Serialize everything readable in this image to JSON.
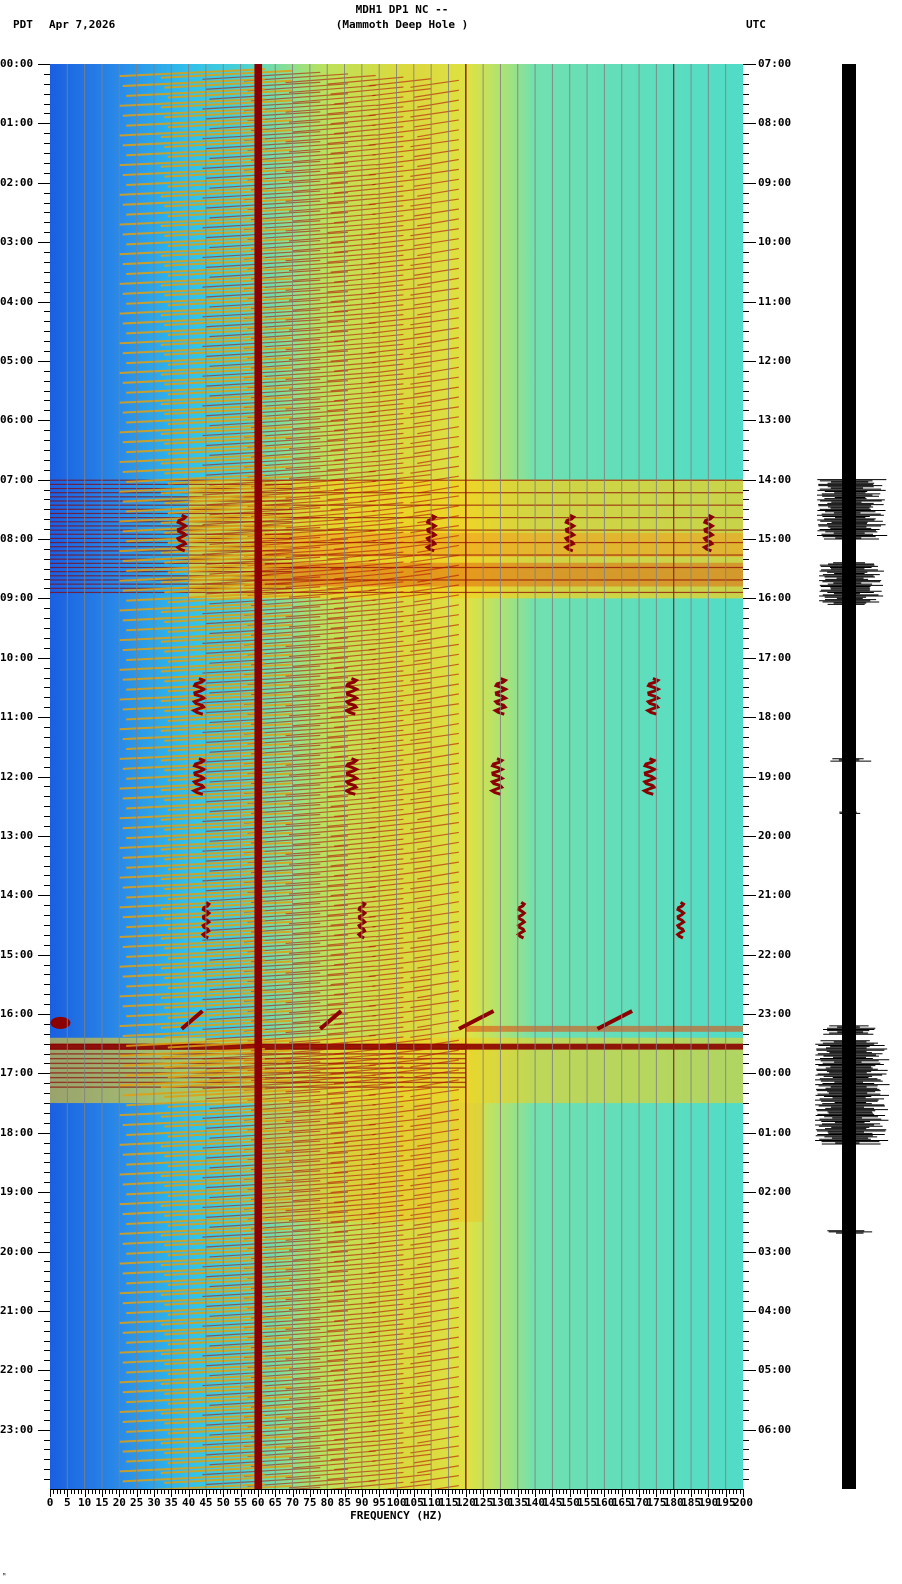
{
  "header": {
    "title_line1": "MDH1 DP1 NC --",
    "title_line2": "(Mammoth Deep Hole )",
    "left_timezone": "PDT",
    "date": "Apr 7,2026",
    "right_timezone": "UTC"
  },
  "footer": {
    "corner_mark": "ᴹ"
  },
  "colors": {
    "background_low": "#1f6fe6",
    "background_mid": "#3ad6e6",
    "high": "#f0e020",
    "very_high": "#e05010",
    "peak": "#8b0000",
    "grid": "#808080",
    "trace": "#000000"
  },
  "chart_data": {
    "type": "heatmap",
    "title": "MDH1 DP1 NC -- (Mammoth Deep Hole )",
    "subtitle": "Apr 7,2026",
    "xlabel": "FREQUENCY (HZ)",
    "ylabel_left": "PDT",
    "ylabel_right": "UTC",
    "xlim": [
      0,
      200
    ],
    "x_ticks": [
      0,
      5,
      10,
      15,
      20,
      25,
      30,
      35,
      40,
      45,
      50,
      55,
      60,
      65,
      70,
      75,
      80,
      85,
      90,
      95,
      100,
      105,
      110,
      115,
      120,
      125,
      130,
      135,
      140,
      145,
      150,
      155,
      160,
      165,
      170,
      175,
      180,
      185,
      190,
      195,
      200
    ],
    "x_tick_labels": [
      "0",
      "5",
      "10",
      "15",
      "20",
      "25",
      "30",
      "35",
      "40",
      "45",
      "50",
      "55",
      "60",
      "65",
      "70",
      "75",
      "80",
      "85",
      "90",
      "95",
      "100",
      "105",
      "110",
      "115",
      "120",
      "125",
      "130",
      "135",
      "140",
      "145",
      "150",
      "155",
      "160",
      "165",
      "170",
      "175",
      "180",
      "185",
      "190",
      "195",
      "200"
    ],
    "y_ticks_left": [
      "00:00",
      "01:00",
      "02:00",
      "03:00",
      "04:00",
      "05:00",
      "06:00",
      "07:00",
      "08:00",
      "09:00",
      "10:00",
      "11:00",
      "12:00",
      "13:00",
      "14:00",
      "15:00",
      "16:00",
      "17:00",
      "18:00",
      "19:00",
      "20:00",
      "21:00",
      "22:00",
      "23:00"
    ],
    "y_ticks_right": [
      "07:00",
      "08:00",
      "09:00",
      "10:00",
      "11:00",
      "12:00",
      "13:00",
      "14:00",
      "15:00",
      "16:00",
      "17:00",
      "18:00",
      "19:00",
      "20:00",
      "21:00",
      "22:00",
      "23:00",
      "00:00",
      "01:00",
      "02:00",
      "03:00",
      "04:00",
      "05:00",
      "06:00"
    ],
    "grid": true,
    "grid_spacing_hz": 5,
    "colorscale": [
      "blue",
      "cyan",
      "yellow",
      "red",
      "dark-red"
    ],
    "persistent_lines_hz": [
      60,
      120,
      180
    ],
    "features": [
      {
        "type": "diagonal_harmonic_sweeps",
        "freq_range_hz": [
          20,
          120
        ],
        "note": "repeated upward sweeps roughly every 10 minutes across the whole day"
      },
      {
        "type": "broadband_noise",
        "time_pdt": [
          "07:00",
          "09:00"
        ],
        "freq_range_hz": [
          0,
          200
        ]
      },
      {
        "type": "event_cluster",
        "time_pdt": "10:30",
        "freq_hz": [
          43,
          88,
          130,
          175
        ]
      },
      {
        "type": "event_cluster",
        "time_pdt": "12:00",
        "freq_hz": [
          43,
          88,
          130,
          175
        ]
      },
      {
        "type": "event_cluster",
        "time_pdt": "14:30",
        "freq_hz": [
          45,
          90,
          135,
          180
        ]
      },
      {
        "type": "event_cluster",
        "time_pdt": "16:00",
        "freq_hz": [
          0,
          40,
          80,
          120,
          160
        ]
      },
      {
        "type": "broadband_noise",
        "time_pdt": [
          "16:30",
          "17:30"
        ],
        "freq_range_hz": [
          0,
          200
        ]
      }
    ],
    "trace": {
      "type": "seismogram",
      "bursts_pdt": [
        "07:00-09:00",
        "11:45",
        "16:15-18:30",
        "19:40"
      ]
    }
  }
}
